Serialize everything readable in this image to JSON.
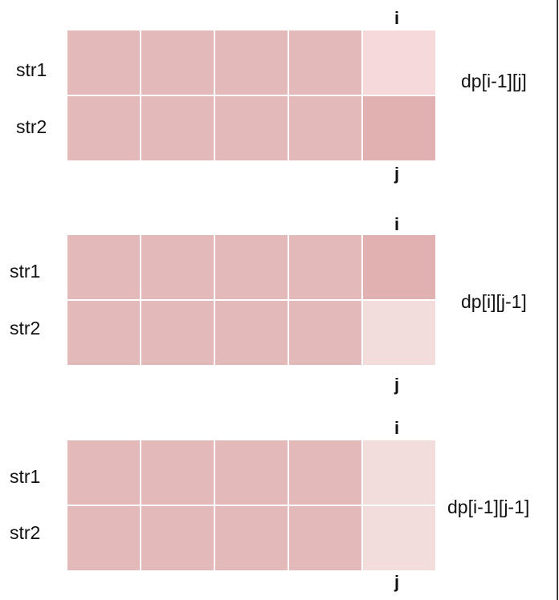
{
  "panels": [
    {
      "row_labels": [
        "str1",
        "str2"
      ],
      "i_label": "i",
      "j_label": "j",
      "dp_label": "dp[i-1][j]",
      "highlight": "str1 row, last column"
    },
    {
      "row_labels": [
        "str1",
        "str2"
      ],
      "i_label": "i",
      "j_label": "j",
      "dp_label": "dp[i][j-1]",
      "highlight": "str2 row, last column"
    },
    {
      "row_labels": [
        "str1",
        "str2"
      ],
      "i_label": "i",
      "j_label": "j",
      "dp_label": "dp[i-1][j-1]",
      "highlight": "both rows, last column"
    }
  ]
}
